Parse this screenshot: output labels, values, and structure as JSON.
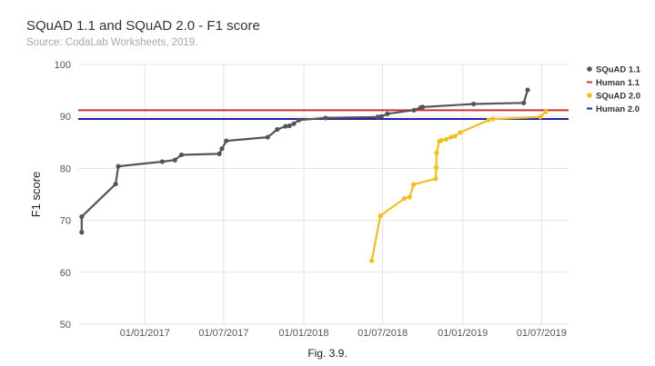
{
  "title": "SQuAD 1.1 and SQuAD 2.0 - F1 score",
  "subtitle": "Source: CodaLab Worksheets, 2019.",
  "caption": "Fig. 3.9.",
  "chart_data": {
    "type": "line",
    "title": "SQuAD 1.1 and SQuAD 2.0 - F1 score",
    "subtitle": "Source: CodaLab Worksheets, 2019.",
    "xlabel": "",
    "ylabel": "F1 score",
    "xlim": [
      "2016-08-01",
      "2019-09-01"
    ],
    "ylim": [
      50,
      100
    ],
    "yticks": [
      50,
      60,
      70,
      80,
      90,
      100
    ],
    "xticks": [
      {
        "value": "2017-01-01",
        "label": "01/01/2017"
      },
      {
        "value": "2017-07-01",
        "label": "01/07/2017"
      },
      {
        "value": "2018-01-01",
        "label": "01/01/2018"
      },
      {
        "value": "2018-07-01",
        "label": "01/07/2018"
      },
      {
        "value": "2019-01-01",
        "label": "01/01/2019"
      },
      {
        "value": "2019-07-01",
        "label": "01/07/2019"
      }
    ],
    "grid": true,
    "legend": "right",
    "series": [
      {
        "name": "SQuAD 1.1",
        "color": "#555555",
        "kind": "line",
        "points": [
          [
            "2016-08-09",
            67.7
          ],
          [
            "2016-08-09",
            70.7
          ],
          [
            "2016-10-26",
            77.0
          ],
          [
            "2016-11-01",
            80.4
          ],
          [
            "2017-02-10",
            81.3
          ],
          [
            "2017-03-11",
            81.6
          ],
          [
            "2017-03-26",
            82.6
          ],
          [
            "2017-06-21",
            82.8
          ],
          [
            "2017-06-27",
            83.8
          ],
          [
            "2017-07-07",
            85.3
          ],
          [
            "2017-10-10",
            86.0
          ],
          [
            "2017-11-01",
            87.5
          ],
          [
            "2017-11-20",
            88.1
          ],
          [
            "2017-11-29",
            88.2
          ],
          [
            "2017-12-09",
            88.6
          ],
          [
            "2017-12-21",
            89.3
          ],
          [
            "2018-02-20",
            89.7
          ],
          [
            "2018-06-20",
            89.9
          ],
          [
            "2018-06-28",
            90.0
          ],
          [
            "2018-07-12",
            90.5
          ],
          [
            "2018-09-11",
            91.2
          ],
          [
            "2018-09-26",
            91.7
          ],
          [
            "2018-10-01",
            91.8
          ],
          [
            "2019-01-26",
            92.4
          ],
          [
            "2019-05-21",
            92.6
          ],
          [
            "2019-05-30",
            95.1
          ]
        ]
      },
      {
        "name": "Human 1.1",
        "color": "#cc3333",
        "kind": "hline",
        "value": 91.2
      },
      {
        "name": "SQuAD 2.0",
        "color": "#f0c020",
        "kind": "line",
        "points": [
          [
            "2018-06-06",
            62.2
          ],
          [
            "2018-06-26",
            70.9
          ],
          [
            "2018-08-20",
            74.2
          ],
          [
            "2018-09-01",
            74.5
          ],
          [
            "2018-09-10",
            76.9
          ],
          [
            "2018-10-31",
            78.0
          ],
          [
            "2018-11-01",
            80.2
          ],
          [
            "2018-11-02",
            83.0
          ],
          [
            "2018-11-08",
            85.2
          ],
          [
            "2018-11-13",
            85.4
          ],
          [
            "2018-11-24",
            85.6
          ],
          [
            "2018-12-05",
            86.0
          ],
          [
            "2018-12-14",
            86.2
          ],
          [
            "2018-12-26",
            86.9
          ],
          [
            "2019-03-01",
            89.3
          ],
          [
            "2019-03-12",
            89.5
          ],
          [
            "2019-06-28",
            89.9
          ],
          [
            "2019-07-11",
            90.9
          ]
        ]
      },
      {
        "name": "Human 2.0",
        "color": "#1f1fa8",
        "kind": "hline",
        "value": 89.5
      }
    ]
  }
}
